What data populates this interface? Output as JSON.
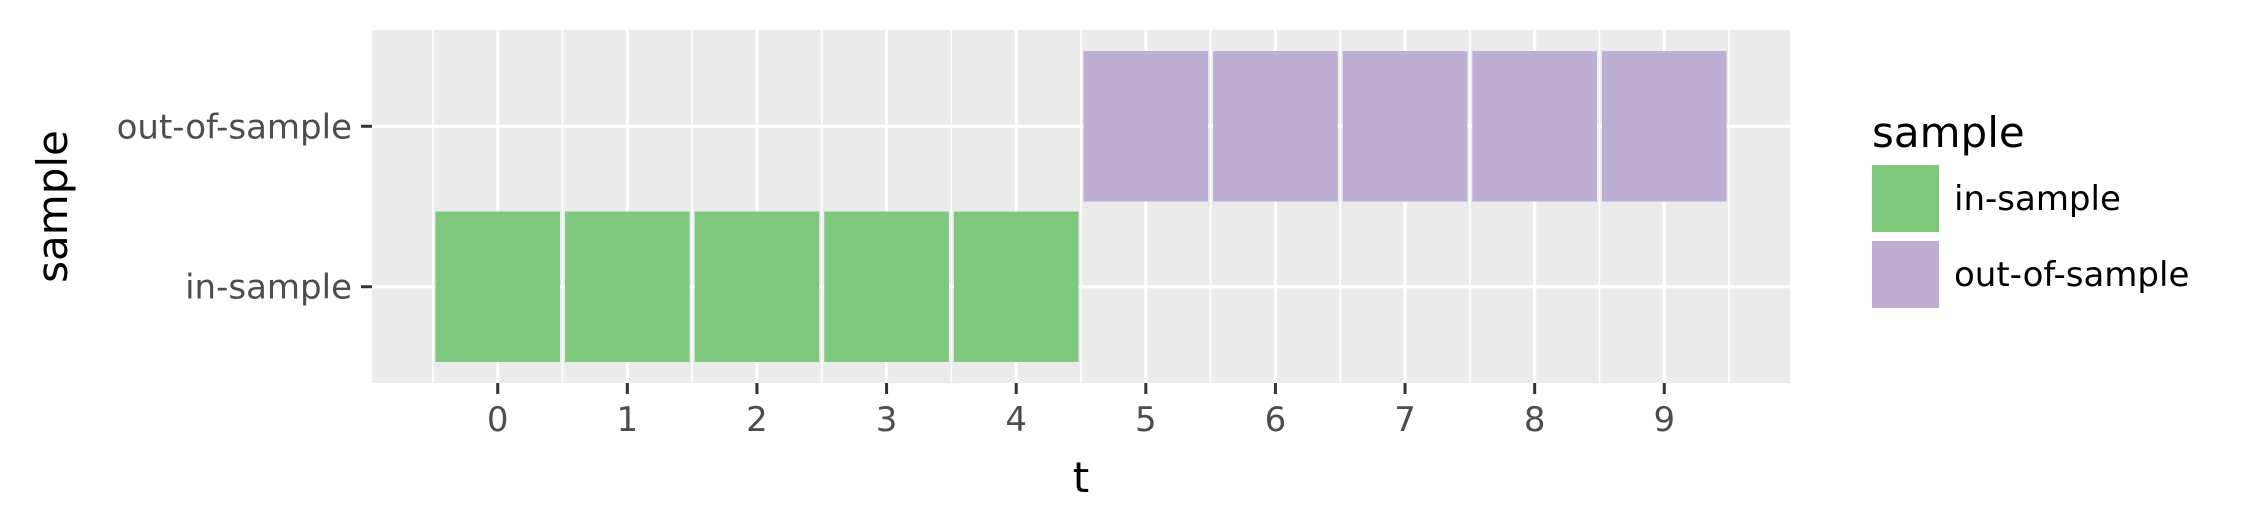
{
  "chart_data": {
    "type": "tile",
    "xlabel": "t",
    "ylabel": "sample",
    "x_ticks": [
      0,
      1,
      2,
      3,
      4,
      5,
      6,
      7,
      8,
      9
    ],
    "x_range": [
      -0.97,
      9.97
    ],
    "y_categories": [
      "in-sample",
      "out-of-sample"
    ],
    "grid": true,
    "legend": {
      "title": "sample",
      "position": "right",
      "entries": [
        {
          "label": "in-sample",
          "color": "#7fc97f"
        },
        {
          "label": "out-of-sample",
          "color": "#beaed4"
        }
      ]
    },
    "tiles": [
      {
        "t": 0,
        "sample": "in-sample"
      },
      {
        "t": 1,
        "sample": "in-sample"
      },
      {
        "t": 2,
        "sample": "in-sample"
      },
      {
        "t": 3,
        "sample": "in-sample"
      },
      {
        "t": 4,
        "sample": "in-sample"
      },
      {
        "t": 5,
        "sample": "out-of-sample"
      },
      {
        "t": 6,
        "sample": "out-of-sample"
      },
      {
        "t": 7,
        "sample": "out-of-sample"
      },
      {
        "t": 8,
        "sample": "out-of-sample"
      },
      {
        "t": 9,
        "sample": "out-of-sample"
      }
    ]
  },
  "colors": {
    "panel_background": "#ebebeb",
    "grid": "#ffffff",
    "axis_text": "#4d4d4d",
    "title_text": "#000000"
  }
}
